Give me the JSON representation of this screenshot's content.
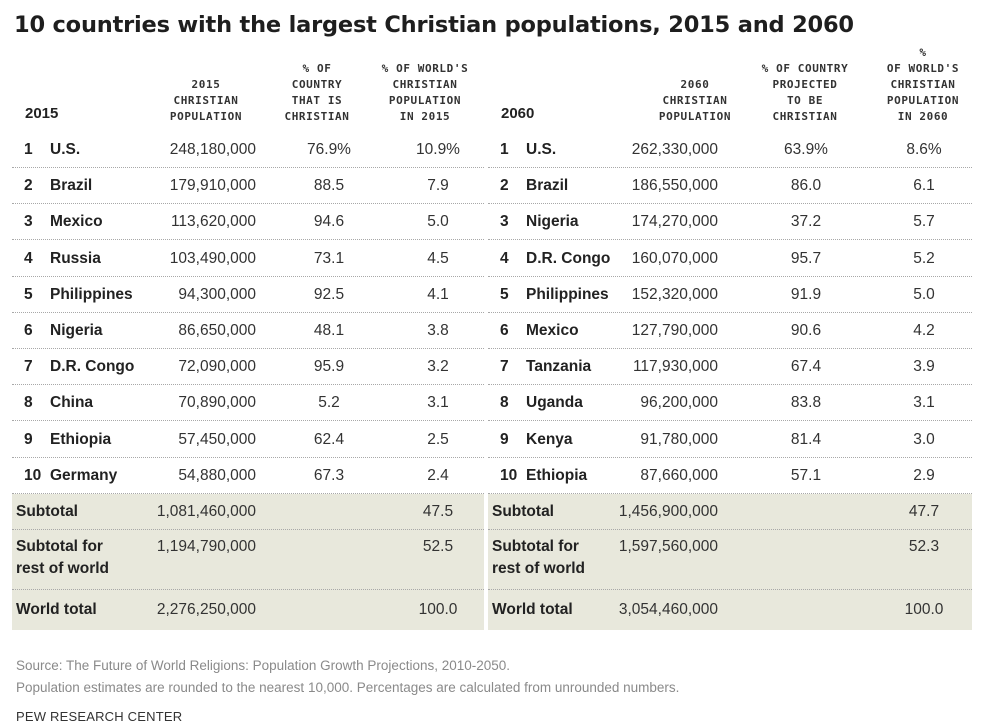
{
  "title": "10 countries with the largest Christian populations, 2015 and 2060",
  "left": {
    "year_label": "2015",
    "headers": {
      "population": "2015\nCHRISTIAN\nPOPULATION",
      "pct_country": "% OF\nCOUNTRY\nTHAT IS\nCHRISTIAN",
      "pct_world": "% OF WORLD'S\nCHRISTIAN\nPOPULATION\nIN 2015"
    },
    "rows": [
      {
        "rank": "1",
        "country": "U.S.",
        "population": "248,180,000",
        "pct_country": "76.9%",
        "pct_world": "10.9%"
      },
      {
        "rank": "2",
        "country": "Brazil",
        "population": "179,910,000",
        "pct_country": "88.5",
        "pct_world": "7.9"
      },
      {
        "rank": "3",
        "country": "Mexico",
        "population": "113,620,000",
        "pct_country": "94.6",
        "pct_world": "5.0"
      },
      {
        "rank": "4",
        "country": "Russia",
        "population": "103,490,000",
        "pct_country": "73.1",
        "pct_world": "4.5"
      },
      {
        "rank": "5",
        "country": "Philippines",
        "population": "94,300,000",
        "pct_country": "92.5",
        "pct_world": "4.1"
      },
      {
        "rank": "6",
        "country": "Nigeria",
        "population": "86,650,000",
        "pct_country": "48.1",
        "pct_world": "3.8"
      },
      {
        "rank": "7",
        "country": "D.R. Congo",
        "population": "72,090,000",
        "pct_country": "95.9",
        "pct_world": "3.2"
      },
      {
        "rank": "8",
        "country": "China",
        "population": "70,890,000",
        "pct_country": "5.2",
        "pct_world": "3.1"
      },
      {
        "rank": "9",
        "country": "Ethiopia",
        "population": "57,450,000",
        "pct_country": "62.4",
        "pct_world": "2.5"
      },
      {
        "rank": "10",
        "country": "Germany",
        "population": "54,880,000",
        "pct_country": "67.3",
        "pct_world": "2.4"
      }
    ],
    "subtotal": {
      "label": "Subtotal",
      "population": "1,081,460,000",
      "pct_world": "47.5"
    },
    "rest": {
      "label": "Subtotal for\nrest of world",
      "population": "1,194,790,000",
      "pct_world": "52.5"
    },
    "world": {
      "label": "World total",
      "population": "2,276,250,000",
      "pct_world": "100.0"
    }
  },
  "right": {
    "year_label": "2060",
    "headers": {
      "population": "2060\nCHRISTIAN\nPOPULATION",
      "pct_country": "% OF COUNTRY\nPROJECTED\nTO BE\nCHRISTIAN",
      "pct_world": "%\nOF WORLD'S\nCHRISTIAN\nPOPULATION\nIN 2060"
    },
    "rows": [
      {
        "rank": "1",
        "country": "U.S.",
        "population": "262,330,000",
        "pct_country": "63.9%",
        "pct_world": "8.6%"
      },
      {
        "rank": "2",
        "country": "Brazil",
        "population": "186,550,000",
        "pct_country": "86.0",
        "pct_world": "6.1"
      },
      {
        "rank": "3",
        "country": "Nigeria",
        "population": "174,270,000",
        "pct_country": "37.2",
        "pct_world": "5.7"
      },
      {
        "rank": "4",
        "country": "D.R. Congo",
        "population": "160,070,000",
        "pct_country": "95.7",
        "pct_world": "5.2"
      },
      {
        "rank": "5",
        "country": "Philippines",
        "population": "152,320,000",
        "pct_country": "91.9",
        "pct_world": "5.0"
      },
      {
        "rank": "6",
        "country": "Mexico",
        "population": "127,790,000",
        "pct_country": "90.6",
        "pct_world": "4.2"
      },
      {
        "rank": "7",
        "country": "Tanzania",
        "population": "117,930,000",
        "pct_country": "67.4",
        "pct_world": "3.9"
      },
      {
        "rank": "8",
        "country": "Uganda",
        "population": "96,200,000",
        "pct_country": "83.8",
        "pct_world": "3.1"
      },
      {
        "rank": "9",
        "country": "Kenya",
        "population": "91,780,000",
        "pct_country": "81.4",
        "pct_world": "3.0"
      },
      {
        "rank": "10",
        "country": "Ethiopia",
        "population": "87,660,000",
        "pct_country": "57.1",
        "pct_world": "2.9"
      }
    ],
    "subtotal": {
      "label": "Subtotal",
      "population": "1,456,900,000",
      "pct_world": "47.7"
    },
    "rest": {
      "label": "Subtotal for\nrest of world",
      "population": "1,597,560,000",
      "pct_world": "52.3"
    },
    "world": {
      "label": "World total",
      "population": "3,054,460,000",
      "pct_world": "100.0"
    }
  },
  "footer": {
    "source": "Source: The Future of World Religions: Population Growth Projections, 2010-2050.",
    "note": "Population estimates are rounded to the nearest 10,000. Percentages are calculated from unrounded numbers.",
    "brand": "PEW RESEARCH CENTER"
  }
}
